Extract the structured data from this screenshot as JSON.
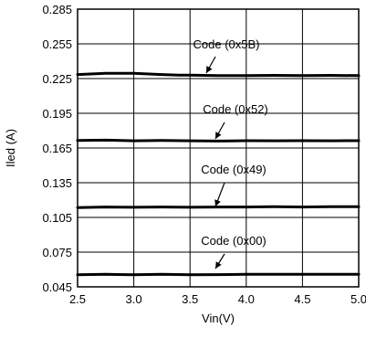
{
  "chart_data": {
    "type": "line",
    "xlabel": "Vin(V)",
    "ylabel": "Iled (A)",
    "xlim": [
      2.5,
      5.0
    ],
    "ylim": [
      0.045,
      0.285
    ],
    "x_ticks": [
      "2.5",
      "3.0",
      "3.5",
      "4.0",
      "4.5",
      "5.0"
    ],
    "y_ticks": [
      "0.285",
      "0.255",
      "0.225",
      "0.195",
      "0.165",
      "0.135",
      "0.105",
      "0.075",
      "0.045"
    ],
    "grid": true,
    "series": [
      {
        "name": "Code (0x5B)",
        "x": [
          2.5,
          2.75,
          3.0,
          3.25,
          3.4,
          3.5,
          3.75,
          4.0,
          4.25,
          4.5,
          4.75,
          5.0
        ],
        "y": [
          0.2285,
          0.2295,
          0.2295,
          0.2285,
          0.228,
          0.228,
          0.2275,
          0.2275,
          0.2278,
          0.2275,
          0.2278,
          0.2275
        ]
      },
      {
        "name": "Code (0x52)",
        "x": [
          2.5,
          2.75,
          3.0,
          3.25,
          3.5,
          3.75,
          4.0,
          4.25,
          4.5,
          4.75,
          5.0
        ],
        "y": [
          0.1715,
          0.1718,
          0.1712,
          0.1715,
          0.1712,
          0.171,
          0.1713,
          0.1712,
          0.1713,
          0.1712,
          0.1713
        ]
      },
      {
        "name": "Code (0x49)",
        "x": [
          2.5,
          2.75,
          3.0,
          3.25,
          3.5,
          3.75,
          4.0,
          4.25,
          4.5,
          4.75,
          5.0
        ],
        "y": [
          0.1135,
          0.114,
          0.1138,
          0.114,
          0.1138,
          0.114,
          0.114,
          0.1142,
          0.114,
          0.1142,
          0.1142
        ]
      },
      {
        "name": "Code (0x00)",
        "x": [
          2.5,
          2.75,
          3.0,
          3.25,
          3.5,
          3.75,
          4.0,
          4.25,
          4.5,
          4.75,
          5.0
        ],
        "y": [
          0.0555,
          0.0558,
          0.0555,
          0.0558,
          0.0555,
          0.0556,
          0.0558,
          0.0558,
          0.0558,
          0.0558,
          0.0558
        ]
      }
    ]
  }
}
